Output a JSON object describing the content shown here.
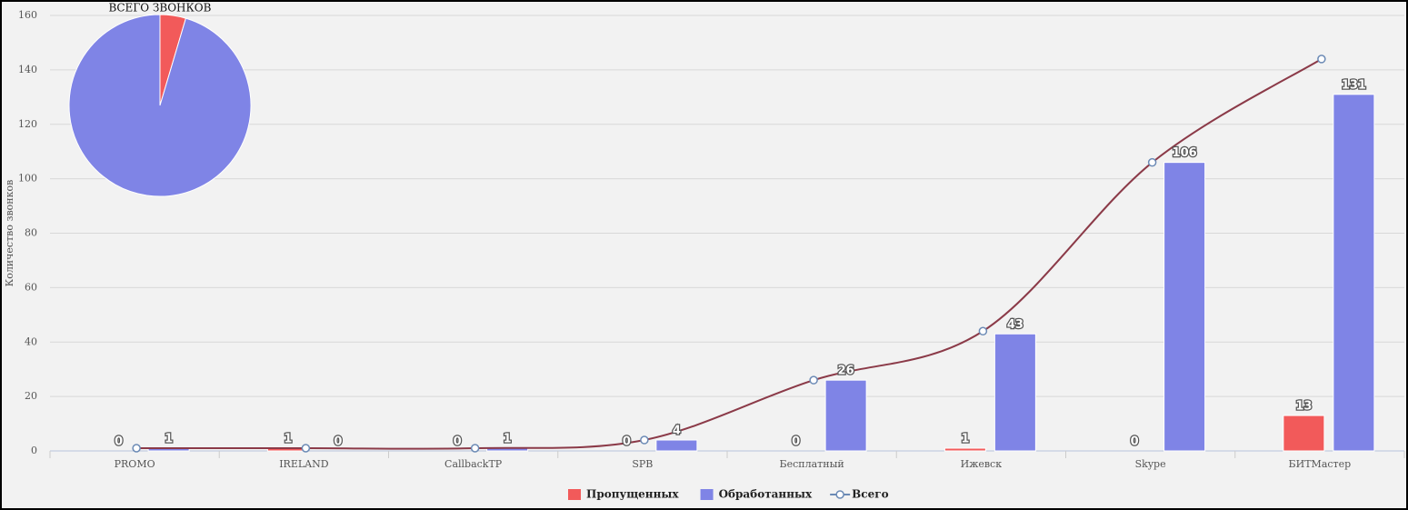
{
  "chart_data": [
    {
      "type": "bar",
      "y_label": "Количество звонков",
      "categories": [
        "PROMO",
        "IRELAND",
        "CallbackTP",
        "SPB",
        "Бесплатный",
        "Ижевск",
        "Skype",
        "БИТМастер"
      ],
      "series": [
        {
          "name": "Пропущенных",
          "color": "#f25a5a",
          "type": "bar",
          "values": [
            0,
            1,
            0,
            0,
            0,
            1,
            0,
            13
          ]
        },
        {
          "name": "Обработанных",
          "color": "#7f84e6",
          "type": "bar",
          "values": [
            1,
            0,
            1,
            4,
            26,
            43,
            106,
            131
          ]
        },
        {
          "name": "Всего",
          "color": "#8b3a48",
          "type": "line",
          "values": [
            1,
            1,
            1,
            4,
            26,
            44,
            106,
            144
          ]
        }
      ],
      "ylim": [
        0,
        160
      ],
      "yticks": [
        0,
        20,
        40,
        60,
        80,
        100,
        120,
        140,
        160
      ],
      "grid": true,
      "legend": "bottom"
    },
    {
      "type": "pie",
      "title": "ВСЕГО ЗВОНКОВ",
      "values": [
        15,
        312
      ],
      "colors": [
        "#f25a5a",
        "#7f84e6"
      ]
    }
  ]
}
